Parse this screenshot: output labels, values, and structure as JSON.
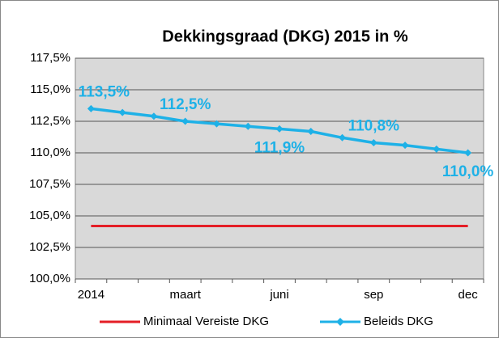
{
  "chart_data": {
    "type": "line",
    "title": "Dekkingsgraad (DKG) 2015 in %",
    "categories": [
      "2014",
      null,
      null,
      "maart",
      null,
      null,
      "juni",
      null,
      null,
      "sep",
      null,
      null,
      "dec"
    ],
    "series": [
      {
        "name": "Minimaal Vereiste DKG",
        "color": "#e41e26",
        "values": [
          104.2,
          104.2,
          104.2,
          104.2,
          104.2,
          104.2,
          104.2,
          104.2,
          104.2,
          104.2,
          104.2,
          104.2,
          104.2
        ]
      },
      {
        "name": "Beleids DKG",
        "color": "#1eb1e7",
        "values": [
          113.5,
          113.2,
          112.9,
          112.5,
          112.3,
          112.1,
          111.9,
          111.7,
          111.2,
          110.8,
          110.6,
          110.3,
          110.0
        ],
        "value_labels": [
          "113,5%",
          null,
          null,
          "112,5%",
          null,
          null,
          "111,9%",
          null,
          null,
          "110,8%",
          null,
          null,
          "110,0%"
        ]
      }
    ],
    "ylim": [
      100,
      117.5
    ],
    "yticks": [
      {
        "value": 100,
        "label": "100,0%"
      },
      {
        "value": 102.5,
        "label": "102,5%"
      },
      {
        "value": 105,
        "label": "105,0%"
      },
      {
        "value": 107.5,
        "label": "107,5%"
      },
      {
        "value": 110,
        "label": "110,0%"
      },
      {
        "value": 112.5,
        "label": "112,5%"
      },
      {
        "value": 115,
        "label": "115,0%"
      },
      {
        "value": 117.5,
        "label": "117,5%"
      }
    ],
    "grid": true,
    "legend": "bottom"
  }
}
